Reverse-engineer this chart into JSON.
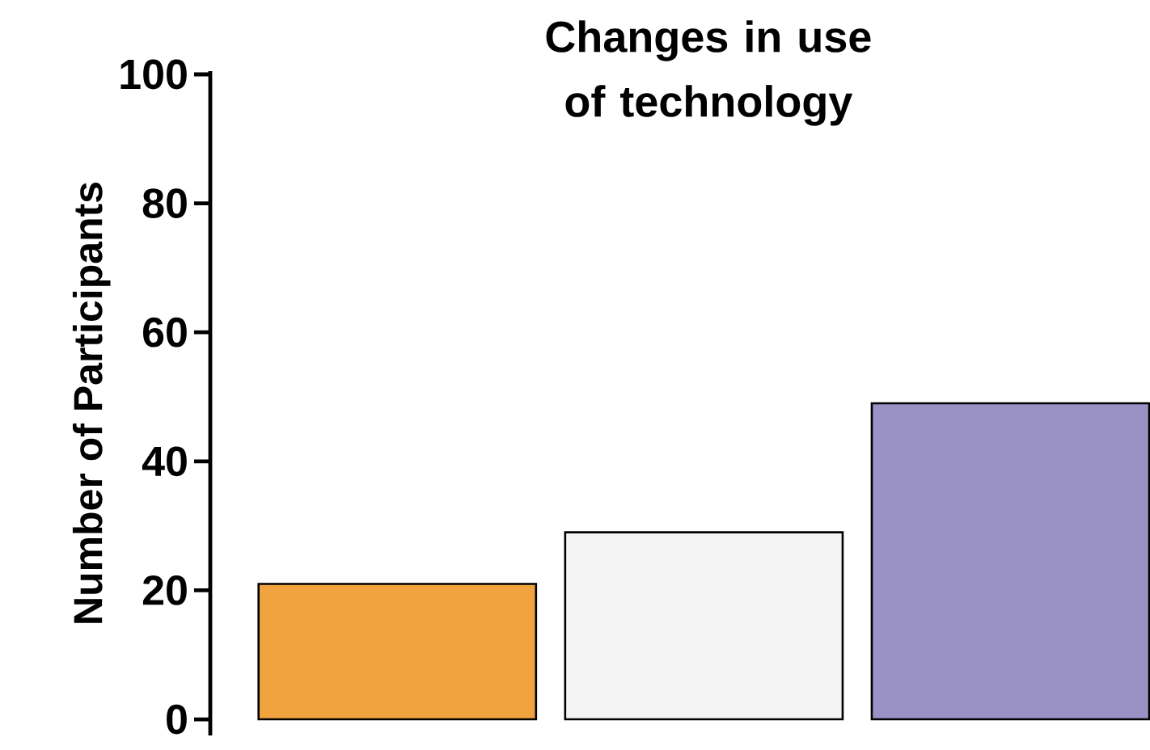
{
  "chart_data": {
    "type": "bar",
    "title": "Changes in use of technology",
    "ylabel": "Number of Participants",
    "categories": [
      null,
      null,
      null
    ],
    "values": [
      21,
      29,
      49
    ],
    "colors": [
      "#f0a33f",
      "#f4f4f4",
      "#9a91c4"
    ],
    "ylim": [
      -2.5,
      100.5
    ],
    "yticks": [
      0,
      20,
      40,
      60,
      80,
      100
    ],
    "grid": false,
    "tick_labels": "y"
  }
}
